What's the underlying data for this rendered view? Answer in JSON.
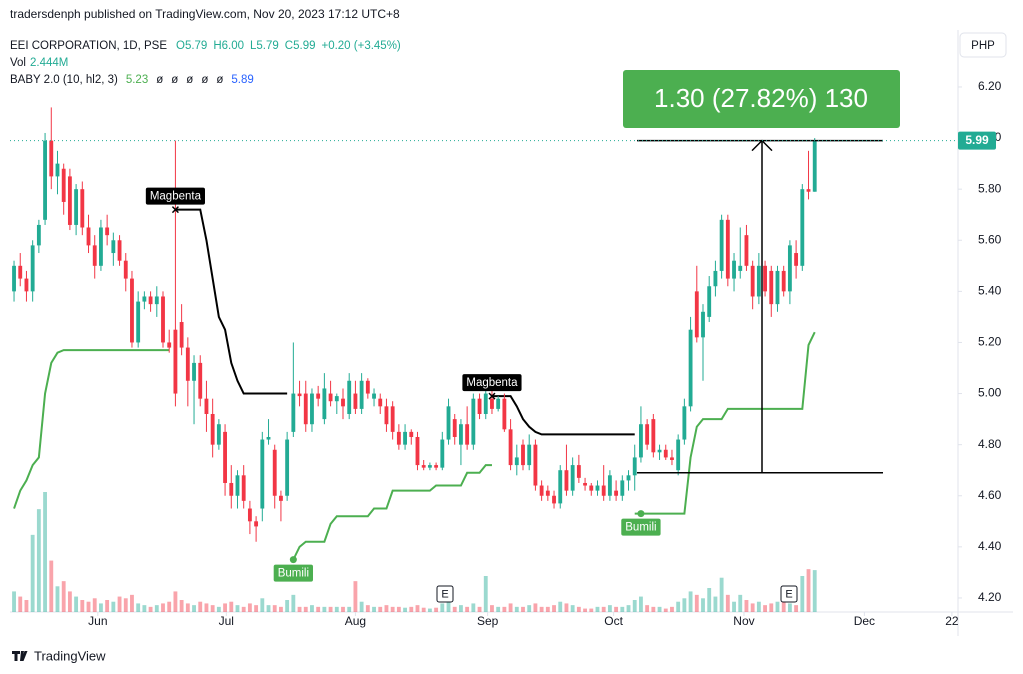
{
  "chart_data": {
    "type": "candlestick",
    "published": "tradersdenph published on TradingView.com, Nov 20, 2023 17:12 UTC+8",
    "title": "EEI CORPORATION, 1D, PSE",
    "legend_ohlc": [
      "O5.79",
      "H6.00",
      "L5.79",
      "C5.99",
      "+0.20 (+3.45%)"
    ],
    "volume_name": "Vol",
    "volume_last": "2.444M",
    "indicator_name": "BABY 2.0 (10, hl2, 3)",
    "indicator_values": [
      "5.23",
      "ø",
      "ø",
      "ø",
      "ø",
      "ø",
      "5.89"
    ],
    "currency": "PHP",
    "brand": "TradingView",
    "up_color": "#22ab94",
    "down_color": "#f23645",
    "ylim": [
      4.145,
      6.423
    ],
    "yticks": [
      {
        "value": 4.2,
        "label": "4.20"
      },
      {
        "value": 4.4,
        "label": "4.40"
      },
      {
        "value": 4.6,
        "label": "4.60"
      },
      {
        "value": 4.8,
        "label": "4.80"
      },
      {
        "value": 5.0,
        "label": "5.00"
      },
      {
        "value": 5.2,
        "label": "5.20"
      },
      {
        "value": 5.4,
        "label": "5.40"
      },
      {
        "value": 5.6,
        "label": "5.60"
      },
      {
        "value": 5.8,
        "label": "5.80"
      },
      {
        "value": 6.0,
        "label": "6.00"
      },
      {
        "value": 6.2,
        "label": "6.20"
      }
    ],
    "xlim": [
      -0.65,
      151.6
    ],
    "xticks": [
      {
        "value": 13.5,
        "label": "Jun"
      },
      {
        "value": 34.2,
        "label": "Jul"
      },
      {
        "value": 55,
        "label": "Aug"
      },
      {
        "value": 76.3,
        "label": "Sep"
      },
      {
        "value": 96.6,
        "label": "Oct"
      },
      {
        "value": 117.6,
        "label": "Nov"
      },
      {
        "value": 137,
        "label": "Dec"
      },
      {
        "value": 151.1,
        "label": "22"
      }
    ],
    "ohlc": [
      [
        5.4,
        5.52,
        5.36,
        5.5
      ],
      [
        5.5,
        5.55,
        5.42,
        5.45
      ],
      [
        5.45,
        5.48,
        5.36,
        5.4
      ],
      [
        5.4,
        5.6,
        5.36,
        5.58
      ],
      [
        5.58,
        5.68,
        5.55,
        5.66
      ],
      [
        5.68,
        6.02,
        5.66,
        5.99
      ],
      [
        5.99,
        6.12,
        5.8,
        5.85
      ],
      [
        5.85,
        5.95,
        5.78,
        5.9
      ],
      [
        5.88,
        5.9,
        5.7,
        5.75
      ],
      [
        5.85,
        5.88,
        5.64,
        5.66
      ],
      [
        5.66,
        5.82,
        5.62,
        5.8
      ],
      [
        5.8,
        5.83,
        5.62,
        5.65
      ],
      [
        5.65,
        5.7,
        5.55,
        5.58
      ],
      [
        5.58,
        5.62,
        5.45,
        5.5
      ],
      [
        5.5,
        5.68,
        5.48,
        5.65
      ],
      [
        5.65,
        5.7,
        5.58,
        5.62
      ],
      [
        5.55,
        5.63,
        5.5,
        5.6
      ],
      [
        5.6,
        5.62,
        5.5,
        5.52
      ],
      [
        5.52,
        5.55,
        5.4,
        5.45
      ],
      [
        5.45,
        5.48,
        5.18,
        5.2
      ],
      [
        5.2,
        5.4,
        5.18,
        5.36
      ],
      [
        5.36,
        5.4,
        5.33,
        5.38
      ],
      [
        5.38,
        5.4,
        5.32,
        5.35
      ],
      [
        5.35,
        5.42,
        5.3,
        5.38
      ],
      [
        5.38,
        5.4,
        5.18,
        5.2
      ],
      [
        5.2,
        5.25,
        5.16,
        5.18
      ],
      [
        5.25,
        5.99,
        4.95,
        5.0
      ],
      [
        5.28,
        5.35,
        5.15,
        5.18
      ],
      [
        5.18,
        5.22,
        4.95,
        5.05
      ],
      [
        5.05,
        5.15,
        4.88,
        5.12
      ],
      [
        5.12,
        5.15,
        4.95,
        4.98
      ],
      [
        4.98,
        5.05,
        4.85,
        4.92
      ],
      [
        4.92,
        4.98,
        4.75,
        4.8
      ],
      [
        4.8,
        4.9,
        4.78,
        4.88
      ],
      [
        4.85,
        4.88,
        4.6,
        4.65
      ],
      [
        4.65,
        4.72,
        4.55,
        4.6
      ],
      [
        4.6,
        4.7,
        4.55,
        4.68
      ],
      [
        4.68,
        4.72,
        4.55,
        4.58
      ],
      [
        4.55,
        4.58,
        4.45,
        4.5
      ],
      [
        4.5,
        4.52,
        4.42,
        4.48
      ],
      [
        4.55,
        4.85,
        4.5,
        4.82
      ],
      [
        4.82,
        4.9,
        4.8,
        4.83
      ],
      [
        4.78,
        4.8,
        4.55,
        4.6
      ],
      [
        4.6,
        4.62,
        4.5,
        4.58
      ],
      [
        4.6,
        4.85,
        4.58,
        4.82
      ],
      [
        4.85,
        5.2,
        4.83,
        5.0
      ],
      [
        5.0,
        5.05,
        4.95,
        4.99
      ],
      [
        5.0,
        5.05,
        4.85,
        4.88
      ],
      [
        4.88,
        5.02,
        4.85,
        5.0
      ],
      [
        5.0,
        5.03,
        4.95,
        4.98
      ],
      [
        4.9,
        5.08,
        4.88,
        5.02
      ],
      [
        5.0,
        5.05,
        4.95,
        4.97
      ],
      [
        4.97,
        5.0,
        4.92,
        4.99
      ],
      [
        4.98,
        5.02,
        4.9,
        4.95
      ],
      [
        4.92,
        5.08,
        4.9,
        5.05
      ],
      [
        5.0,
        5.05,
        4.92,
        4.94
      ],
      [
        4.94,
        5.08,
        4.92,
        5.05
      ],
      [
        5.05,
        5.06,
        4.98,
        5.0
      ],
      [
        4.98,
        5.02,
        4.95,
        5.0
      ],
      [
        4.98,
        5.0,
        4.92,
        4.95
      ],
      [
        4.95,
        4.98,
        4.85,
        4.88
      ],
      [
        4.95,
        4.97,
        4.82,
        4.85
      ],
      [
        4.85,
        4.88,
        4.78,
        4.8
      ],
      [
        4.8,
        4.88,
        4.78,
        4.85
      ],
      [
        4.85,
        4.86,
        4.8,
        4.83
      ],
      [
        4.83,
        4.85,
        4.7,
        4.72
      ],
      [
        4.72,
        4.74,
        4.7,
        4.71
      ],
      [
        4.71,
        4.73,
        4.7,
        4.72
      ],
      [
        4.72,
        4.73,
        4.7,
        4.71
      ],
      [
        4.71,
        4.85,
        4.7,
        4.82
      ],
      [
        4.82,
        4.98,
        4.8,
        4.95
      ],
      [
        4.9,
        4.92,
        4.8,
        4.83
      ],
      [
        4.8,
        4.9,
        4.72,
        4.88
      ],
      [
        4.88,
        4.95,
        4.78,
        4.8
      ],
      [
        4.8,
        5.0,
        4.78,
        4.98
      ],
      [
        4.98,
        5.0,
        4.9,
        4.92
      ],
      [
        4.92,
        5.02,
        4.9,
        5.0
      ],
      [
        4.98,
        5.02,
        4.92,
        4.94
      ],
      [
        4.94,
        4.99,
        4.93,
        4.98
      ],
      [
        4.98,
        5.0,
        4.85,
        4.86
      ],
      [
        4.86,
        4.9,
        4.7,
        4.72
      ],
      [
        4.72,
        4.8,
        4.68,
        4.75
      ],
      [
        4.8,
        4.82,
        4.7,
        4.72
      ],
      [
        4.72,
        4.84,
        4.7,
        4.8
      ],
      [
        4.8,
        4.82,
        4.62,
        4.64
      ],
      [
        4.64,
        4.66,
        4.58,
        4.6
      ],
      [
        4.62,
        4.64,
        4.58,
        4.6
      ],
      [
        4.6,
        4.62,
        4.55,
        4.57
      ],
      [
        4.57,
        4.72,
        4.55,
        4.7
      ],
      [
        4.7,
        4.8,
        4.6,
        4.62
      ],
      [
        4.62,
        4.75,
        4.6,
        4.72
      ],
      [
        4.72,
        4.76,
        4.65,
        4.67
      ],
      [
        4.65,
        4.67,
        4.62,
        4.64
      ],
      [
        4.64,
        4.65,
        4.6,
        4.62
      ],
      [
        4.62,
        4.66,
        4.6,
        4.64
      ],
      [
        4.64,
        4.72,
        4.58,
        4.6
      ],
      [
        4.6,
        4.7,
        4.58,
        4.68
      ],
      [
        4.62,
        4.66,
        4.58,
        4.6
      ],
      [
        4.6,
        4.68,
        4.58,
        4.66
      ],
      [
        4.66,
        4.7,
        4.62,
        4.68
      ],
      [
        4.68,
        4.8,
        4.62,
        4.75
      ],
      [
        4.75,
        4.95,
        4.73,
        4.88
      ],
      [
        4.88,
        4.9,
        4.78,
        4.8
      ],
      [
        4.9,
        4.92,
        4.75,
        4.77
      ],
      [
        4.77,
        4.8,
        4.74,
        4.78
      ],
      [
        4.78,
        4.8,
        4.74,
        4.75
      ],
      [
        4.75,
        4.78,
        4.72,
        4.74
      ],
      [
        4.7,
        4.84,
        4.68,
        4.82
      ],
      [
        4.82,
        4.98,
        4.8,
        4.95
      ],
      [
        4.95,
        5.3,
        4.93,
        5.25
      ],
      [
        5.4,
        5.5,
        5.2,
        5.22
      ],
      [
        5.22,
        5.35,
        5.05,
        5.32
      ],
      [
        5.3,
        5.46,
        5.28,
        5.42
      ],
      [
        5.42,
        5.52,
        5.38,
        5.48
      ],
      [
        5.48,
        5.7,
        5.45,
        5.68
      ],
      [
        5.68,
        5.7,
        5.42,
        5.45
      ],
      [
        5.45,
        5.55,
        5.4,
        5.52
      ],
      [
        5.48,
        5.65,
        5.45,
        5.5
      ],
      [
        5.62,
        5.66,
        5.48,
        5.5
      ],
      [
        5.5,
        5.52,
        5.33,
        5.38
      ],
      [
        5.38,
        5.55,
        5.35,
        5.5
      ],
      [
        5.5,
        5.52,
        5.38,
        5.4
      ],
      [
        5.48,
        5.5,
        5.3,
        5.35
      ],
      [
        5.35,
        5.5,
        5.32,
        5.48
      ],
      [
        5.48,
        5.5,
        5.38,
        5.4
      ],
      [
        5.4,
        5.6,
        5.35,
        5.58
      ],
      [
        5.55,
        5.6,
        5.45,
        5.5
      ],
      [
        5.5,
        5.82,
        5.48,
        5.8
      ],
      [
        5.8,
        5.95,
        5.76,
        5.79
      ],
      [
        5.79,
        6.0,
        5.79,
        5.99
      ]
    ],
    "volume": [
      1200000,
      900000,
      700000,
      4500000,
      6000000,
      7000000,
      3000000,
      1500000,
      1800000,
      1200000,
      900000,
      700000,
      600000,
      800000,
      500000,
      700000,
      600000,
      900000,
      800000,
      1000000,
      500000,
      400000,
      300000,
      400000,
      500000,
      600000,
      1200000,
      700000,
      500000,
      400000,
      600000,
      500000,
      400000,
      300000,
      500000,
      600000,
      400000,
      300000,
      500000,
      400000,
      800000,
      400000,
      400000,
      300000,
      700000,
      1000000,
      300000,
      300000,
      400000,
      300000,
      300000,
      300000,
      300000,
      300000,
      300000,
      1800000,
      600000,
      400000,
      300000,
      300000,
      400000,
      300000,
      300000,
      250000,
      300000,
      400000,
      250000,
      200000,
      250000,
      500000,
      700000,
      300000,
      400000,
      300000,
      500000,
      300000,
      2100000,
      400000,
      300000,
      300000,
      500000,
      300000,
      300000,
      400000,
      500000,
      300000,
      300000,
      400000,
      600000,
      500000,
      400000,
      300000,
      200000,
      200000,
      300000,
      300000,
      400000,
      300000,
      300000,
      400000,
      700000,
      900000,
      400000,
      300000,
      300000,
      200000,
      300000,
      600000,
      800000,
      1200000,
      1000000,
      800000,
      1400000,
      900000,
      2000000,
      1000000,
      600000,
      1000000,
      700000,
      500000,
      600000,
      400000,
      500000,
      600000,
      800000,
      500000,
      400000,
      2100000,
      2500000,
      2444000
    ],
    "support_line": {
      "color": "#4caf50",
      "values": [
        4.55,
        4.62,
        4.66,
        4.72,
        4.75,
        5.0,
        5.12,
        5.16,
        5.17,
        5.17,
        5.17,
        5.17,
        5.17,
        5.17,
        5.17,
        5.17,
        5.17,
        5.17,
        5.17,
        5.17,
        5.17,
        5.17,
        5.17,
        5.17,
        5.17,
        5.17,
        null,
        null,
        null,
        null,
        null,
        null,
        null,
        null,
        null,
        null,
        null,
        null,
        null,
        null,
        null,
        null,
        null,
        null,
        null,
        4.35,
        4.4,
        4.42,
        4.42,
        4.42,
        4.42,
        4.49,
        4.52,
        4.52,
        4.52,
        4.52,
        4.52,
        4.52,
        4.55,
        4.55,
        4.55,
        4.62,
        4.62,
        4.62,
        4.62,
        4.62,
        4.62,
        4.62,
        4.64,
        4.64,
        4.64,
        4.64,
        4.64,
        4.69,
        4.69,
        4.69,
        4.72,
        4.72,
        null,
        null,
        null,
        null,
        null,
        null,
        null,
        null,
        null,
        null,
        null,
        null,
        null,
        null,
        null,
        null,
        null,
        null,
        null,
        null,
        null,
        null,
        4.53,
        4.53,
        4.53,
        4.53,
        4.53,
        4.53,
        4.53,
        4.53,
        4.53,
        4.75,
        4.87,
        4.9,
        4.9,
        4.9,
        4.9,
        4.94,
        4.94,
        4.94,
        4.94,
        4.94,
        4.94,
        4.94,
        4.94,
        4.94,
        4.94,
        4.94,
        4.94,
        4.94,
        5.19,
        5.24
      ]
    },
    "resistance_line": {
      "color": "#000000",
      "values": [
        null,
        null,
        null,
        null,
        null,
        null,
        null,
        null,
        null,
        null,
        null,
        null,
        null,
        null,
        null,
        null,
        null,
        null,
        null,
        null,
        null,
        null,
        null,
        null,
        null,
        null,
        5.72,
        5.72,
        5.72,
        5.72,
        5.72,
        5.6,
        5.45,
        5.3,
        5.25,
        5.12,
        5.05,
        5.0,
        5.0,
        5.0,
        5.0,
        5.0,
        5.0,
        5.0,
        5.0,
        null,
        null,
        null,
        null,
        null,
        null,
        null,
        null,
        null,
        null,
        null,
        null,
        null,
        null,
        null,
        null,
        null,
        null,
        null,
        null,
        null,
        null,
        null,
        null,
        null,
        null,
        null,
        null,
        null,
        null,
        null,
        null,
        4.99,
        4.99,
        4.99,
        4.99,
        4.95,
        4.9,
        4.87,
        4.85,
        4.84,
        4.84,
        4.84,
        4.84,
        4.84,
        4.84,
        4.84,
        4.84,
        4.84,
        4.84,
        4.84,
        4.84,
        4.84,
        4.84,
        4.84,
        4.84,
        null,
        null,
        null,
        null,
        null,
        null,
        null,
        null,
        null,
        null,
        null,
        null,
        null,
        null,
        null,
        null,
        null,
        null,
        null,
        null,
        null,
        null,
        null,
        null,
        null,
        null,
        null,
        null,
        null
      ]
    },
    "sell_signals": [
      {
        "label": "Magbenta",
        "price": 5.72
      },
      {
        "label": "Magbenta",
        "price": 4.99
      }
    ],
    "buy_signals": [
      {
        "label": "Bumili",
        "price": 4.35
      },
      {
        "label": "Bumili",
        "price": 4.53
      }
    ],
    "earnings_labels": [
      "E",
      "E"
    ],
    "measure": {
      "label": "1.30 (27.82%) 130",
      "low": 4.69,
      "high": 5.99
    }
  }
}
